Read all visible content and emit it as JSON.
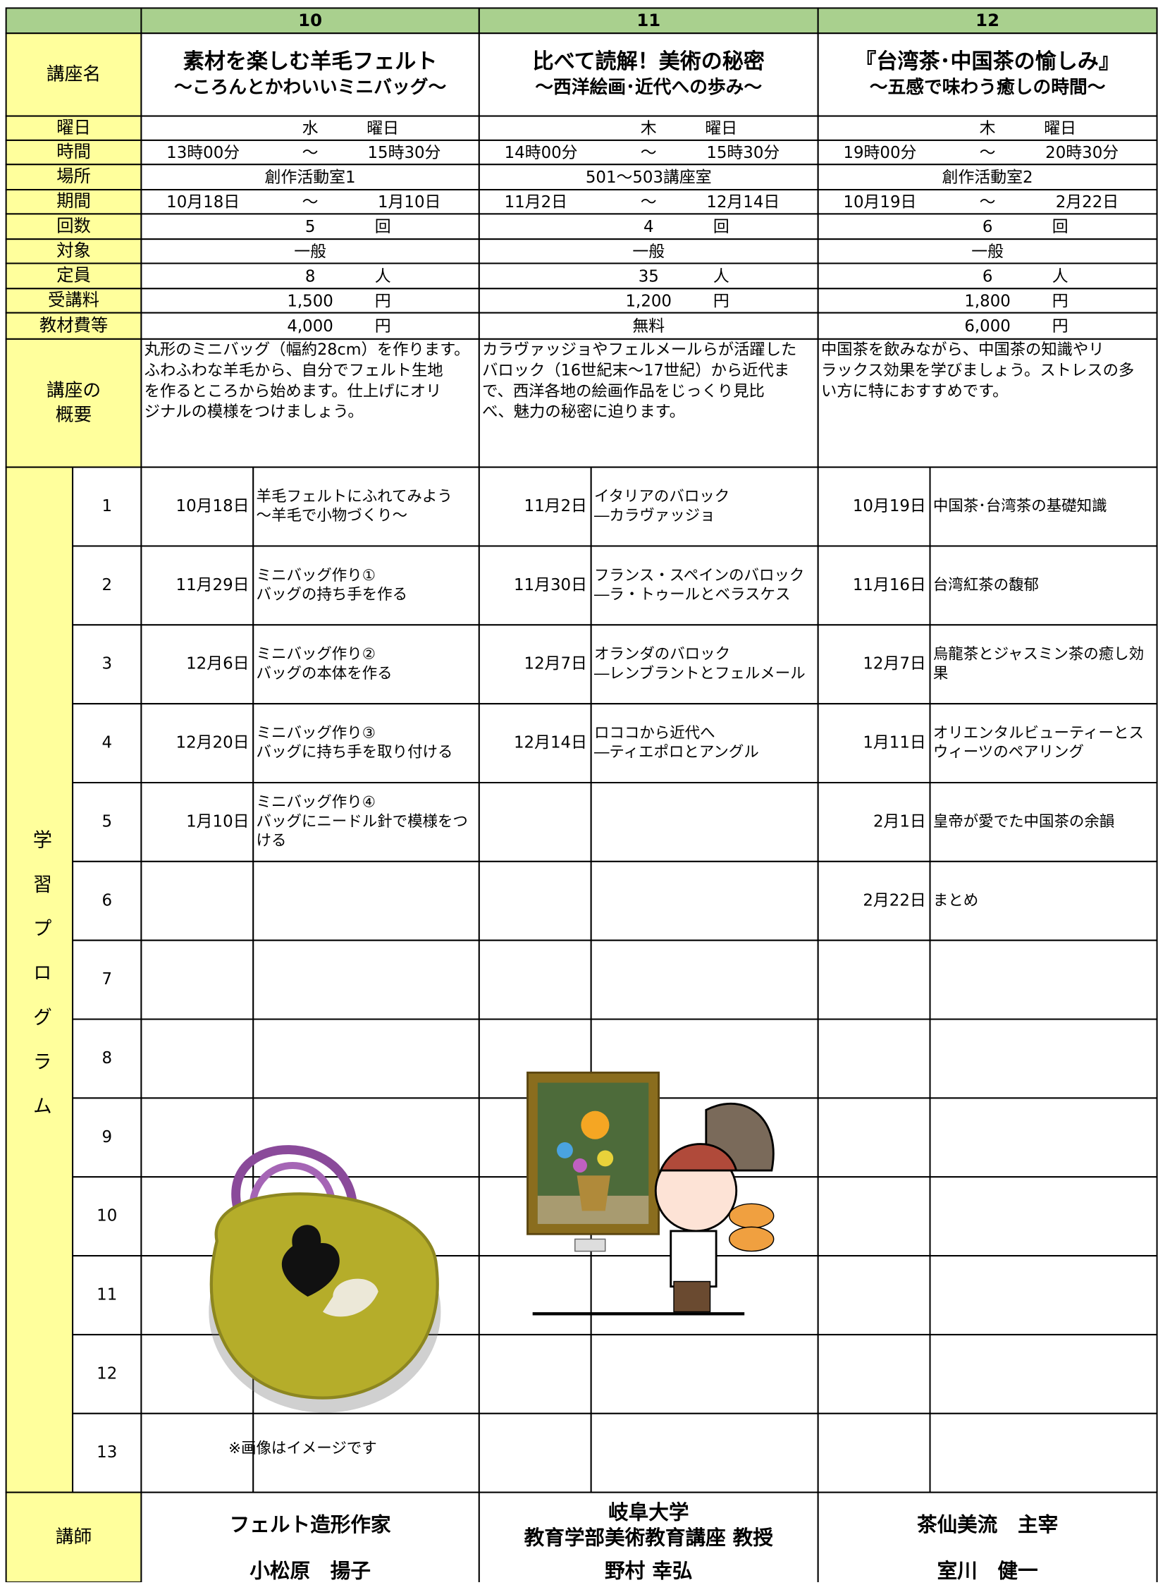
{
  "header": {
    "columns": [
      "10",
      "11",
      "12"
    ]
  },
  "row_labels": {
    "title": "講座名",
    "day": "曜日",
    "time": "時間",
    "place": "場所",
    "period": "期間",
    "count": "回数",
    "target": "対象",
    "capacity": "定員",
    "fee": "受講料",
    "materials": "教材費等",
    "summary": [
      "講座の",
      "概要"
    ],
    "program": "学習プログラム",
    "instructor": "講師"
  },
  "program_numbers": [
    "1",
    "2",
    "3",
    "4",
    "5",
    "6",
    "7",
    "8",
    "9",
    "10",
    "11",
    "12",
    "13"
  ],
  "courses": [
    {
      "title": [
        "素材を楽しむ羊毛フェルト",
        "～ころんとかわいいミニバッグ～"
      ],
      "day": [
        "水",
        "曜日"
      ],
      "time": [
        "13時00分",
        "～",
        "15時30分"
      ],
      "place": "創作活動室1",
      "period": [
        "10月18日",
        "～",
        "1月10日"
      ],
      "count": [
        "5",
        "回"
      ],
      "target": "一般",
      "capacity": [
        "8",
        "人"
      ],
      "fee": [
        "1,500",
        "円"
      ],
      "materials": [
        "4,000",
        "円"
      ],
      "summary": [
        "丸形のミニバッグ（幅約28cm）を作ります。",
        "ふわふわな羊毛から、自分でフェルト生地",
        "を作るところから始めます。仕上げにオリ",
        "ジナルの模様をつけましょう。"
      ],
      "sessions": [
        {
          "date": "10月18日",
          "lines": [
            "羊毛フェルトにふれてみよう",
            "～羊毛で小物づくり～"
          ]
        },
        {
          "date": "11月29日",
          "lines": [
            "ミニバッグ作り①",
            "バッグの持ち手を作る"
          ]
        },
        {
          "date": "12月6日",
          "lines": [
            "ミニバッグ作り②",
            "バッグの本体を作る"
          ]
        },
        {
          "date": "12月20日",
          "lines": [
            "ミニバッグ作り③",
            "バッグに持ち手を取り付ける"
          ]
        },
        {
          "date": "1月10日",
          "lines": [
            "ミニバッグ作り④",
            "バッグにニードル針で模様をつ",
            "ける"
          ]
        }
      ],
      "instructor": [
        "フェルト造形作家",
        "小松原　揚子"
      ]
    },
    {
      "title": [
        "比べて読解！美術の秘密",
        "～西洋絵画･近代への歩み～"
      ],
      "day": [
        "木",
        "曜日"
      ],
      "time": [
        "14時00分",
        "～",
        "15時30分"
      ],
      "place": "501～503講座室",
      "period": [
        "11月2日",
        "～",
        "12月14日"
      ],
      "count": [
        "4",
        "回"
      ],
      "target": "一般",
      "capacity": [
        "35",
        "人"
      ],
      "fee": [
        "1,200",
        "円"
      ],
      "materials": [
        "無料"
      ],
      "summary": [
        "カラヴァッジョやフェルメールらが活躍した",
        "バロック（16世紀末～17世紀）から近代ま",
        "で、西洋各地の絵画作品をじっくり見比",
        "べ、魅力の秘密に迫ります。"
      ],
      "sessions": [
        {
          "date": "11月2日",
          "lines": [
            "イタリアのバロック",
            "―カラヴァッジョ"
          ]
        },
        {
          "date": "11月30日",
          "lines": [
            "フランス・スペインのバロック",
            "―ラ・トゥールとベラスケス"
          ]
        },
        {
          "date": "12月7日",
          "lines": [
            "オランダのバロック",
            "―レンブラントとフェルメール"
          ]
        },
        {
          "date": "12月14日",
          "lines": [
            "ロココから近代へ",
            "―ティエポロとアングル"
          ]
        }
      ],
      "instructor": [
        "岐阜大学",
        "教育学部美術教育講座 教授",
        "野村 幸弘"
      ]
    },
    {
      "title": [
        "『台湾茶･中国茶の愉しみ』",
        "～五感で味わう癒しの時間～"
      ],
      "day": [
        "木",
        "曜日"
      ],
      "time": [
        "19時00分",
        "～",
        "20時30分"
      ],
      "place": "創作活動室2",
      "period": [
        "10月19日",
        "～",
        "2月22日"
      ],
      "count": [
        "6",
        "回"
      ],
      "target": "一般",
      "capacity": [
        "6",
        "人"
      ],
      "fee": [
        "1,800",
        "円"
      ],
      "materials": [
        "6,000",
        "円"
      ],
      "summary": [
        "中国茶を飲みながら、中国茶の知識やリ",
        "ラックス効果を学びましょう。ストレスの多",
        "い方に特におすすめです。"
      ],
      "sessions": [
        {
          "date": "10月19日",
          "lines": [
            "中国茶･台湾茶の基礎知識"
          ]
        },
        {
          "date": "11月16日",
          "lines": [
            "台湾紅茶の馥郁"
          ]
        },
        {
          "date": "12月7日",
          "lines": [
            "烏龍茶とジャスミン茶の癒し効",
            "果"
          ]
        },
        {
          "date": "1月11日",
          "lines": [
            "オリエンタルビューティーとス",
            "ウィーツのペアリング"
          ]
        },
        {
          "date": "2月1日",
          "lines": [
            "皇帝が愛でた中国茶の余韻"
          ]
        },
        {
          "date": "2月22日",
          "lines": [
            "まとめ"
          ]
        }
      ],
      "instructor": [
        "茶仙美流　主宰",
        "室川　健一"
      ]
    }
  ],
  "image_note": "※画像はイメージです"
}
